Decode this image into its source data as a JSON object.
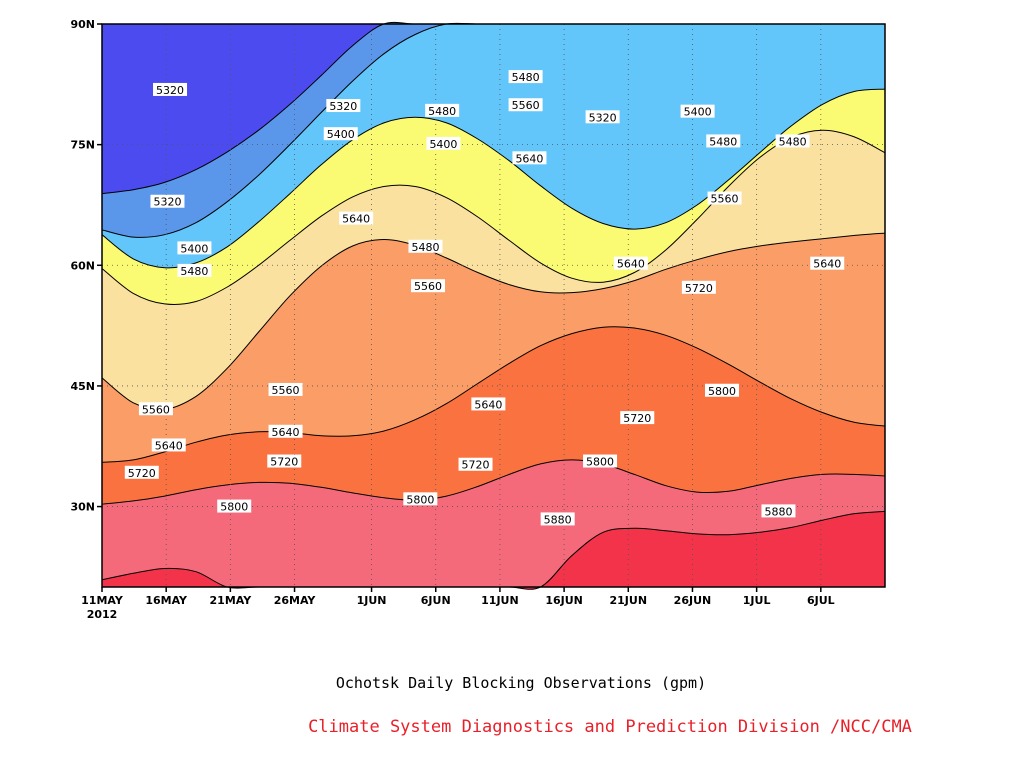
{
  "chart_data": {
    "type": "heatmap",
    "title": "Ochotsk Daily Blocking Observations (gpm)",
    "credit": "Climate System Diagnostics and Prediction Division /NCC/CMA",
    "x_axis": {
      "start_label": "11MAY",
      "start_year": "2012",
      "range_days": [
        0,
        61
      ],
      "ticks": [
        {
          "day": 0,
          "label": "11MAY"
        },
        {
          "day": 5,
          "label": "16MAY"
        },
        {
          "day": 10,
          "label": "21MAY"
        },
        {
          "day": 15,
          "label": "26MAY"
        },
        {
          "day": 21,
          "label": "1JUN"
        },
        {
          "day": 26,
          "label": "6JUN"
        },
        {
          "day": 31,
          "label": "11JUN"
        },
        {
          "day": 36,
          "label": "16JUN"
        },
        {
          "day": 41,
          "label": "21JUN"
        },
        {
          "day": 46,
          "label": "26JUN"
        },
        {
          "day": 51,
          "label": "1JUL"
        },
        {
          "day": 56,
          "label": "6JUL"
        }
      ]
    },
    "y_axis": {
      "range_lat": [
        20,
        90
      ],
      "ticks": [
        {
          "lat": 30,
          "label": "30N"
        },
        {
          "lat": 45,
          "label": "45N"
        },
        {
          "lat": 60,
          "label": "60N"
        },
        {
          "lat": 75,
          "label": "75N"
        },
        {
          "lat": 90,
          "label": "90N"
        }
      ]
    },
    "grid": "dotted",
    "contour_levels": [
      5320,
      5400,
      5480,
      5560,
      5640,
      5720,
      5800,
      5880
    ],
    "colors": [
      "#4b4bf0",
      "#5a96ea",
      "#63c6fa",
      "#fafa73",
      "#fae1a0",
      "#fa9d66",
      "#fa7240",
      "#f56a7a",
      "#f2334a"
    ],
    "level_boundaries": [
      {
        "level": 5320,
        "lat": [
          68.9,
          69.4,
          70.3,
          71.9,
          74.1,
          76.8,
          80.0,
          83.6,
          87.3,
          90,
          90,
          90,
          90,
          90,
          90,
          90,
          90,
          90,
          90,
          90,
          90,
          90,
          90,
          90,
          90,
          90
        ]
      },
      {
        "level": 5400,
        "lat": [
          64.4,
          63.5,
          63.8,
          65.3,
          67.9,
          71.2,
          75.0,
          79.0,
          82.9,
          86.3,
          88.7,
          90,
          90,
          90,
          90,
          90,
          90,
          90,
          90,
          90,
          90,
          90,
          90,
          90,
          90,
          90
        ]
      },
      {
        "level": 5480,
        "lat": [
          63.8,
          60.8,
          59.7,
          60.3,
          62.3,
          65.4,
          68.9,
          72.5,
          75.6,
          77.7,
          78.4,
          77.7,
          75.7,
          73.0,
          69.9,
          67.1,
          65.2,
          64.5,
          65.3,
          67.5,
          70.6,
          74.0,
          77.3,
          80.0,
          81.6,
          81.9
        ]
      },
      {
        "level": 5560,
        "lat": [
          59.6,
          56.5,
          55.2,
          55.5,
          57.3,
          60.0,
          63.1,
          66.1,
          68.5,
          69.8,
          69.8,
          68.4,
          66.0,
          63.1,
          60.3,
          58.4,
          57.9,
          59.1,
          61.9,
          65.7,
          69.8,
          73.4,
          75.9,
          76.8,
          76.0,
          74.0
        ]
      },
      {
        "level": 5640,
        "lat": [
          46.0,
          42.9,
          42.1,
          43.7,
          47.2,
          51.7,
          56.2,
          59.9,
          62.4,
          63.2,
          62.5,
          60.9,
          59.1,
          57.6,
          56.7,
          56.6,
          57.1,
          58.1,
          59.5,
          60.7,
          61.7,
          62.4,
          62.9,
          63.3,
          63.7,
          64.0
        ]
      },
      {
        "level": 5720,
        "lat": [
          35.5,
          35.8,
          36.8,
          38.0,
          38.9,
          39.3,
          39.2,
          38.8,
          38.8,
          39.4,
          40.8,
          42.8,
          45.3,
          47.8,
          50.0,
          51.5,
          52.3,
          52.2,
          51.3,
          49.7,
          47.7,
          45.5,
          43.4,
          41.7,
          40.5,
          40.0
        ]
      },
      {
        "level": 5800,
        "lat": [
          30.3,
          30.7,
          31.3,
          32.1,
          32.7,
          33.0,
          32.9,
          32.4,
          31.7,
          31.1,
          30.8,
          31.3,
          32.5,
          34.0,
          35.3,
          35.8,
          35.3,
          34.0,
          32.6,
          31.8,
          31.9,
          32.7,
          33.5,
          34.0,
          34.0,
          33.8
        ]
      },
      {
        "level": 5880,
        "lat": [
          20.9,
          21.7,
          22.3,
          21.9,
          20.0,
          20.0,
          20.0,
          20.0,
          20.0,
          20.0,
          20.0,
          20.0,
          20.0,
          20.0,
          20.0,
          23.9,
          26.8,
          27.3,
          27.0,
          26.6,
          26.5,
          26.8,
          27.4,
          28.3,
          29.1,
          29.4
        ]
      }
    ],
    "label_positions": [
      {
        "text": "5320",
        "day": 5.3,
        "lat": 81.8
      },
      {
        "text": "5320",
        "day": 18.8,
        "lat": 79.8
      },
      {
        "text": "5320",
        "day": 39.0,
        "lat": 78.4
      },
      {
        "text": "5320",
        "day": 5.1,
        "lat": 67.9
      },
      {
        "text": "5400",
        "day": 18.6,
        "lat": 76.3
      },
      {
        "text": "5400",
        "day": 26.6,
        "lat": 75.1
      },
      {
        "text": "5400",
        "day": 46.4,
        "lat": 79.1
      },
      {
        "text": "5400",
        "day": 7.2,
        "lat": 62.1
      },
      {
        "text": "5480",
        "day": 26.5,
        "lat": 79.2
      },
      {
        "text": "5480",
        "day": 33.0,
        "lat": 83.4
      },
      {
        "text": "5480",
        "day": 48.4,
        "lat": 75.4
      },
      {
        "text": "5480",
        "day": 53.8,
        "lat": 75.4
      },
      {
        "text": "5480",
        "day": 25.2,
        "lat": 62.3
      },
      {
        "text": "5480",
        "day": 7.2,
        "lat": 59.3
      },
      {
        "text": "5560",
        "day": 33.0,
        "lat": 79.9
      },
      {
        "text": "5560",
        "day": 48.5,
        "lat": 68.3
      },
      {
        "text": "5560",
        "day": 25.4,
        "lat": 57.4
      },
      {
        "text": "5560",
        "day": 4.2,
        "lat": 42.1
      },
      {
        "text": "5560",
        "day": 14.3,
        "lat": 44.5
      },
      {
        "text": "5640",
        "day": 33.3,
        "lat": 73.3
      },
      {
        "text": "5640",
        "day": 19.8,
        "lat": 65.8
      },
      {
        "text": "5640",
        "day": 41.2,
        "lat": 60.2
      },
      {
        "text": "5640",
        "day": 56.5,
        "lat": 60.2
      },
      {
        "text": "5640",
        "day": 30.1,
        "lat": 42.7
      },
      {
        "text": "5640",
        "day": 5.2,
        "lat": 37.6
      },
      {
        "text": "5640",
        "day": 14.3,
        "lat": 39.3
      },
      {
        "text": "5720",
        "day": 46.5,
        "lat": 57.2
      },
      {
        "text": "5720",
        "day": 41.7,
        "lat": 41.0
      },
      {
        "text": "5720",
        "day": 29.1,
        "lat": 35.2
      },
      {
        "text": "5720",
        "day": 14.2,
        "lat": 35.6
      },
      {
        "text": "5720",
        "day": 3.1,
        "lat": 34.2
      },
      {
        "text": "5800",
        "day": 48.3,
        "lat": 44.4
      },
      {
        "text": "5800",
        "day": 38.8,
        "lat": 35.6
      },
      {
        "text": "5800",
        "day": 24.8,
        "lat": 30.9
      },
      {
        "text": "5800",
        "day": 10.3,
        "lat": 30.0
      },
      {
        "text": "5880",
        "day": 35.5,
        "lat": 28.4
      },
      {
        "text": "5880",
        "day": 52.7,
        "lat": 29.4
      }
    ]
  }
}
